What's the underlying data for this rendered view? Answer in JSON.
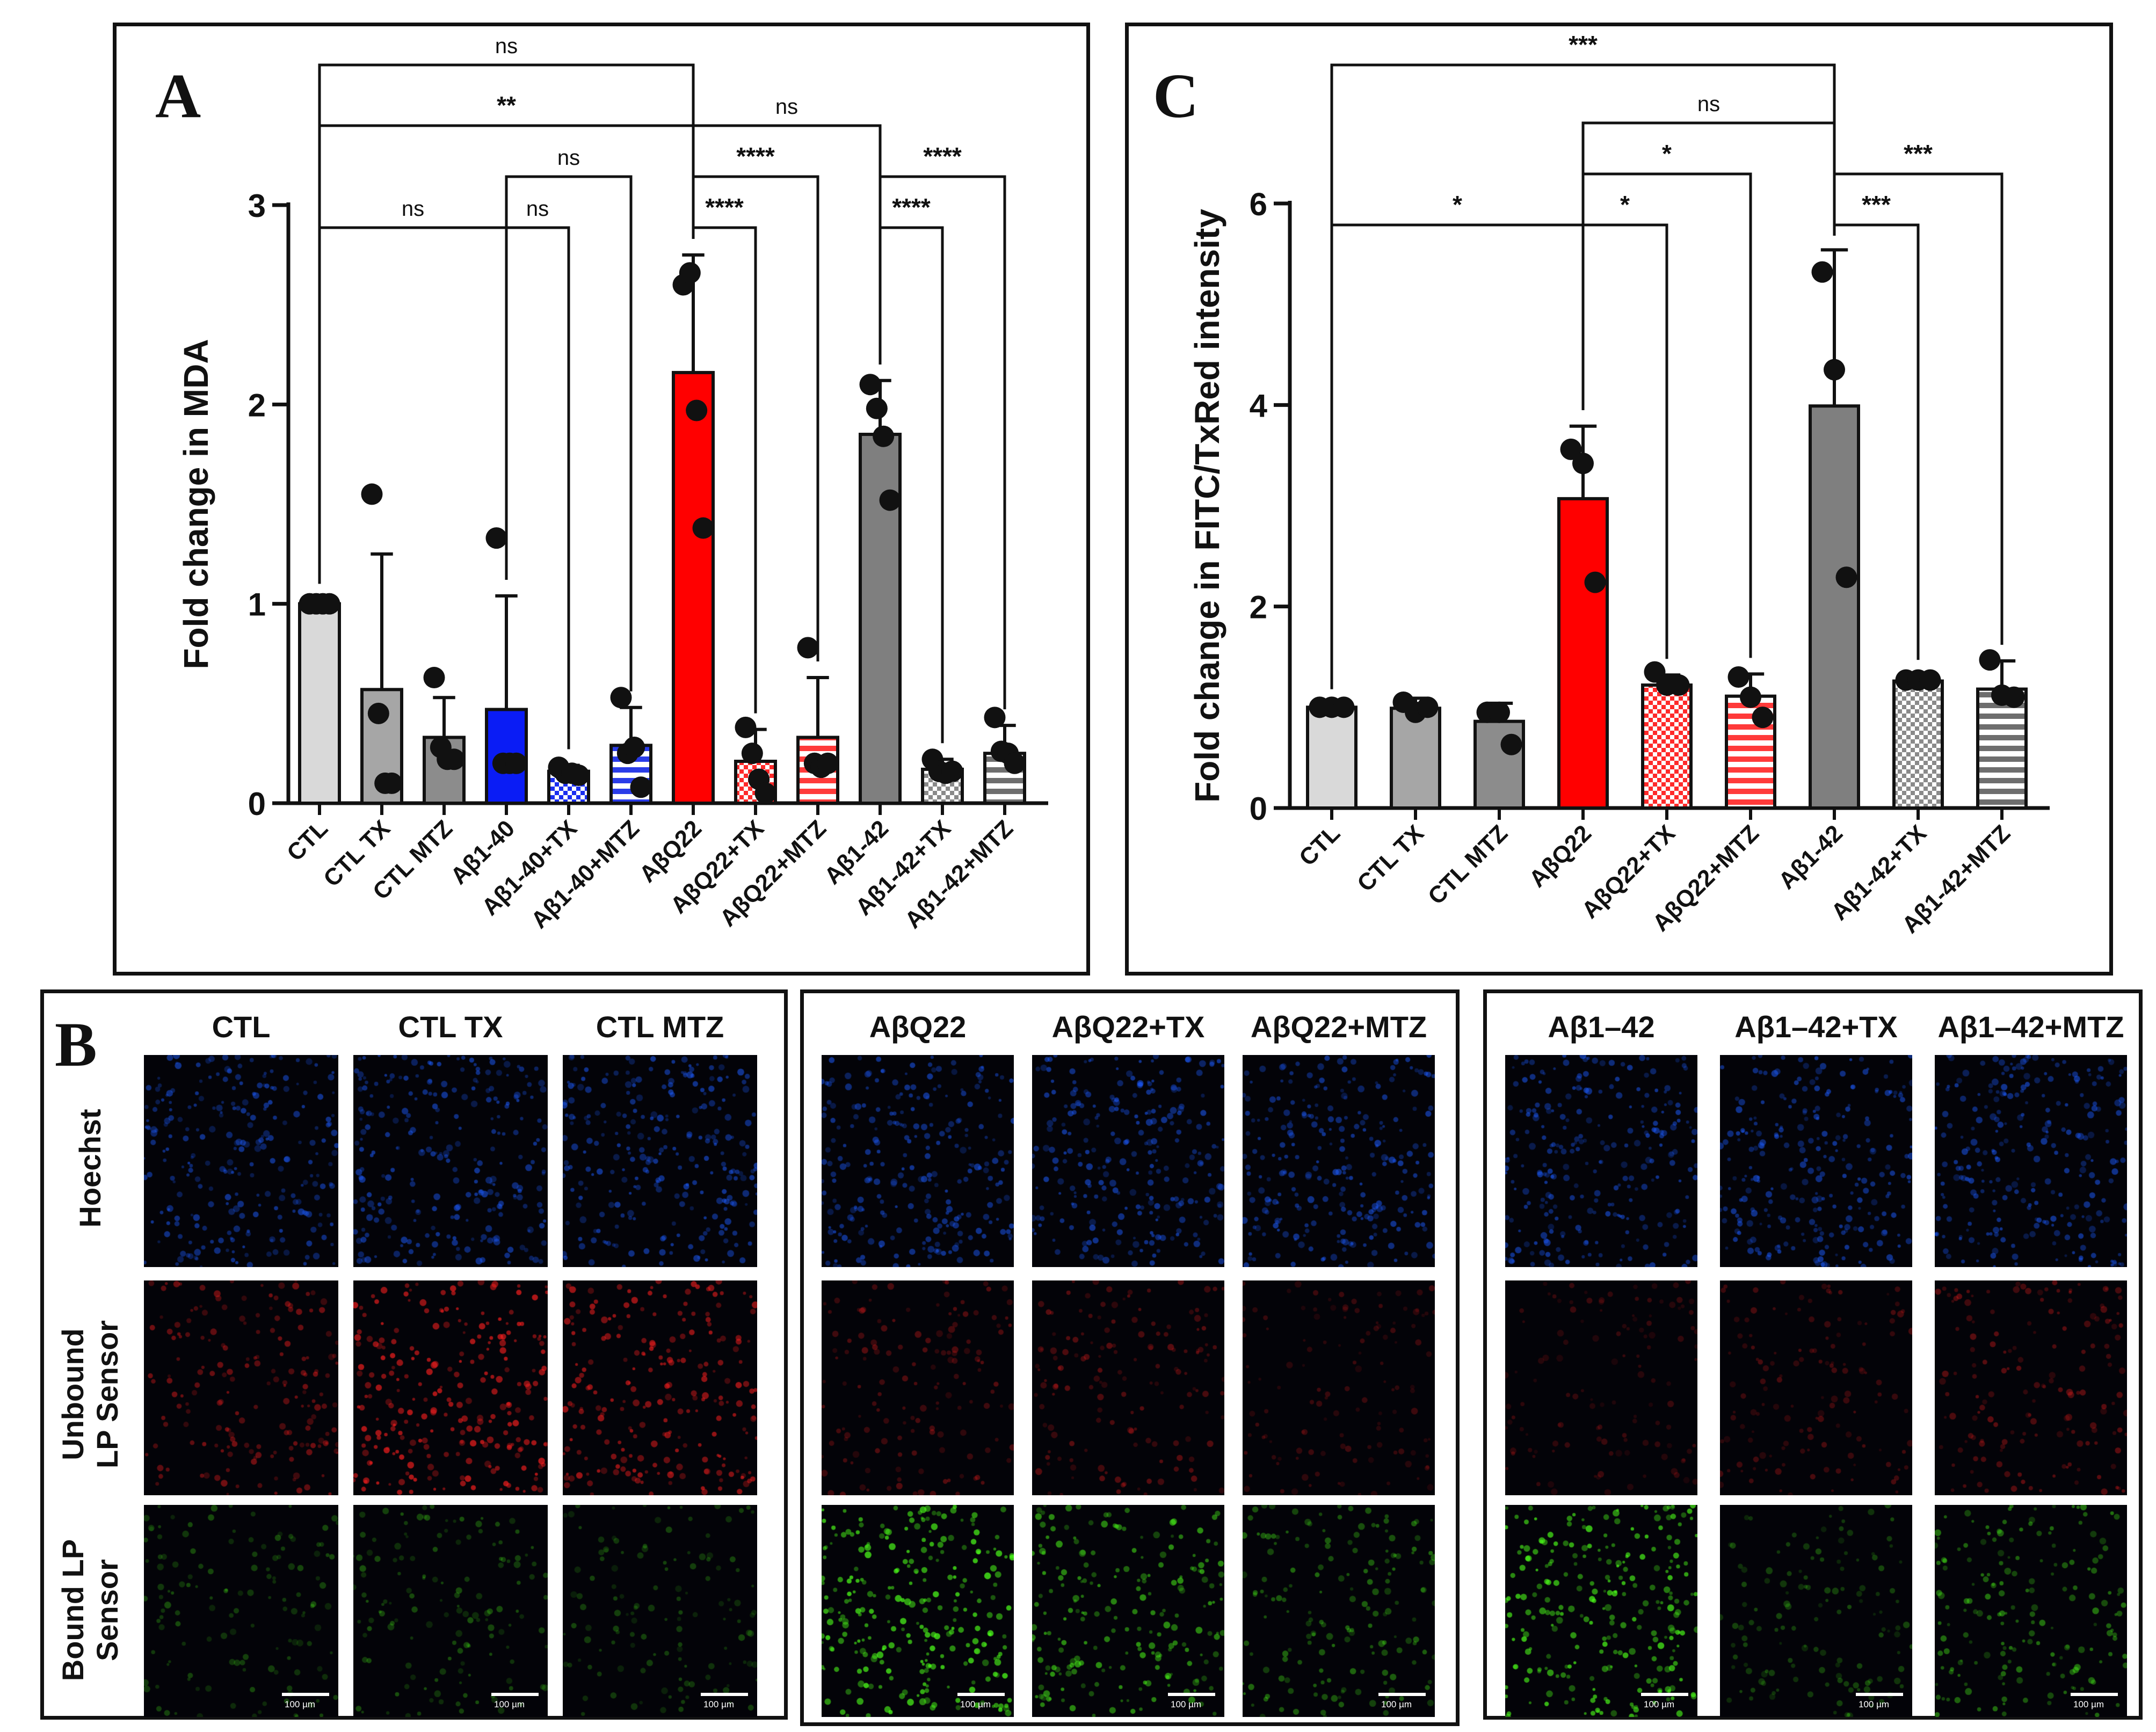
{
  "chart_data": [
    {
      "panel": "A",
      "type": "bar",
      "ylabel": "Fold change in MDA",
      "ylim": [
        0,
        3
      ],
      "yticks": [
        0,
        1,
        2,
        3
      ],
      "categories": [
        "CTL",
        "CTL TX",
        "CTL MTZ",
        "Aβ1-40",
        "Aβ1-40+TX",
        "Aβ1-40+MTZ",
        "AβQ22",
        "AβQ22+TX",
        "AβQ22+MTZ",
        "Aβ1-42",
        "Aβ1-42+TX",
        "Aβ1-42+MTZ"
      ],
      "values": [
        1.0,
        0.57,
        0.33,
        0.47,
        0.16,
        0.29,
        2.16,
        0.21,
        0.33,
        1.85,
        0.17,
        0.25
      ],
      "errors": [
        0.02,
        0.68,
        0.2,
        0.57,
        0.03,
        0.19,
        0.59,
        0.16,
        0.3,
        0.27,
        0.05,
        0.14
      ],
      "points": [
        [
          1.0,
          1.0,
          1.0,
          1.0
        ],
        [
          1.55,
          0.45,
          0.1,
          0.1
        ],
        [
          0.63,
          0.28,
          0.22,
          0.22
        ],
        [
          1.33,
          0.2,
          0.2,
          0.2
        ],
        [
          0.18,
          0.15,
          0.15,
          0.14
        ],
        [
          0.53,
          0.25,
          0.28,
          0.08
        ],
        [
          2.6,
          2.66,
          1.97,
          1.38
        ],
        [
          0.38,
          0.25,
          0.12,
          0.05
        ],
        [
          0.78,
          0.2,
          0.18,
          0.2
        ],
        [
          2.1,
          1.98,
          1.84,
          1.52
        ],
        [
          0.22,
          0.16,
          0.15,
          0.16
        ],
        [
          0.43,
          0.26,
          0.25,
          0.2
        ]
      ],
      "fills": [
        "#d9d9d9",
        "#a6a6a6",
        "#8c8c8c",
        "#0a1cf5",
        "#2f3fe0",
        "#2f3fe0",
        "#ff0000",
        "#ff4d4d",
        "#ff4d4d",
        "#7f7f7f",
        "#b0b0b0",
        "#8c8c8c"
      ],
      "patterns": [
        "solid",
        "solid",
        "solid",
        "solid",
        "dots",
        "hstripes",
        "solid",
        "dots",
        "hstripes",
        "solid",
        "dots",
        "hstripes"
      ],
      "significance": [
        {
          "from": 0,
          "to": 6,
          "label": "ns",
          "level": 0
        },
        {
          "from": 0,
          "to": 6,
          "label": "**",
          "level": 1
        },
        {
          "from": 6,
          "to": 9,
          "label": "ns",
          "level": 1
        },
        {
          "from": 3,
          "to": 5,
          "label": "ns",
          "level": 2
        },
        {
          "from": 6,
          "to": 8,
          "label": "****",
          "level": 2
        },
        {
          "from": 9,
          "to": 11,
          "label": "****",
          "level": 2
        },
        {
          "from": 0,
          "to": 3,
          "label": "ns",
          "level": 3
        },
        {
          "from": 3,
          "to": 4,
          "label": "ns",
          "level": 3
        },
        {
          "from": 6,
          "to": 7,
          "label": "****",
          "level": 3
        },
        {
          "from": 9,
          "to": 10,
          "label": "****",
          "level": 3
        }
      ]
    },
    {
      "panel": "C",
      "type": "bar",
      "ylabel": "Fold change in FITC/TxRed intensity",
      "ylim": [
        0,
        6
      ],
      "yticks": [
        0,
        2,
        4,
        6
      ],
      "categories": [
        "CTL",
        "CTL TX",
        "CTL MTZ",
        "AβQ22",
        "AβQ22+TX",
        "AβQ22+MTZ",
        "Aβ1-42",
        "Aβ1-42+TX",
        "Aβ1-42+MTZ"
      ],
      "values": [
        1.0,
        0.99,
        0.86,
        3.07,
        1.22,
        1.11,
        3.99,
        1.26,
        1.18
      ],
      "errors": [
        0.02,
        0.1,
        0.18,
        0.72,
        0.1,
        0.22,
        1.55,
        0.05,
        0.28
      ],
      "points": [
        [
          1.0,
          1.0,
          1.0
        ],
        [
          1.05,
          0.95,
          1.0
        ],
        [
          0.95,
          0.95,
          0.63
        ],
        [
          3.56,
          3.42,
          2.24
        ],
        [
          1.35,
          1.22,
          1.22
        ],
        [
          1.3,
          1.1,
          0.9
        ],
        [
          5.32,
          4.35,
          2.29
        ],
        [
          1.27,
          1.27,
          1.27
        ],
        [
          1.47,
          1.12,
          1.1
        ]
      ],
      "fills": [
        "#d9d9d9",
        "#a6a6a6",
        "#8c8c8c",
        "#ff0000",
        "#ff4d4d",
        "#ff4d4d",
        "#7f7f7f",
        "#b0b0b0",
        "#8c8c8c"
      ],
      "patterns": [
        "solid",
        "solid",
        "solid",
        "solid",
        "dots",
        "hstripes",
        "solid",
        "dots",
        "hstripes"
      ],
      "significance": [
        {
          "from": 0,
          "to": 6,
          "label": "***",
          "level": 0
        },
        {
          "from": 3,
          "to": 6,
          "label": "ns",
          "level": 1
        },
        {
          "from": 3,
          "to": 5,
          "label": "*",
          "level": 2
        },
        {
          "from": 6,
          "to": 8,
          "label": "***",
          "level": 2
        },
        {
          "from": 0,
          "to": 3,
          "label": "*",
          "level": 3
        },
        {
          "from": 3,
          "to": 4,
          "label": "*",
          "level": 3
        },
        {
          "from": 6,
          "to": 7,
          "label": "***",
          "level": 3
        }
      ]
    }
  ],
  "panels": {
    "a_label": "A",
    "b_label": "B",
    "c_label": "C"
  },
  "microscopy": {
    "row_labels": [
      "Hoechst",
      "Unbound LP Sensor",
      "Bound LP Sensor"
    ],
    "scale_label": "100 µm",
    "groups": [
      {
        "columns": [
          "CTL",
          "CTL TX",
          "CTL MTZ"
        ],
        "intensity": {
          "red": [
            0.55,
            0.85,
            0.75
          ],
          "green": [
            0.35,
            0.38,
            0.32
          ]
        }
      },
      {
        "columns": [
          "AβQ22",
          "AβQ22+TX",
          "AβQ22+MTZ"
        ],
        "intensity": {
          "red": [
            0.4,
            0.42,
            0.3
          ],
          "green": [
            0.95,
            0.7,
            0.5
          ]
        }
      },
      {
        "columns": [
          "Aβ1–42",
          "Aβ1–42+TX",
          "Aβ1–42+MTZ"
        ],
        "intensity": {
          "red": [
            0.28,
            0.35,
            0.45
          ],
          "green": [
            0.9,
            0.35,
            0.55
          ]
        }
      }
    ]
  },
  "colors": {
    "hoechst": "#1d5cff",
    "unbound": "#ff2020",
    "bound": "#4cff1a"
  }
}
